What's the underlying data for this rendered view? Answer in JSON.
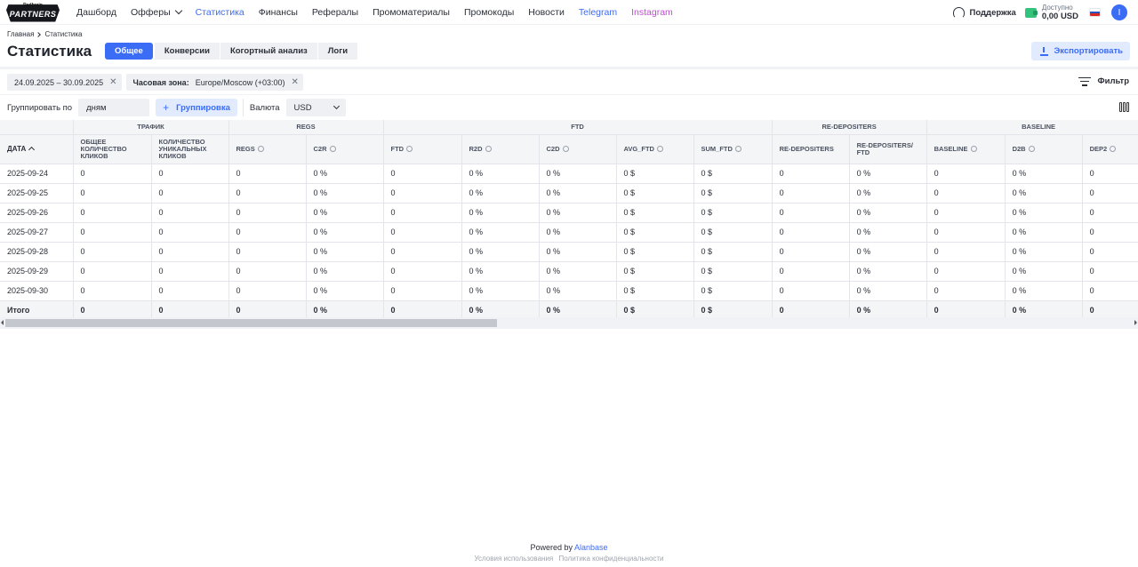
{
  "logo": {
    "top": "Redbrain",
    "main": "PARTNERS"
  },
  "nav": [
    {
      "label": "Дашборд"
    },
    {
      "label": "Офферы",
      "dropdown": true
    },
    {
      "label": "Статистика",
      "active": true
    },
    {
      "label": "Финансы"
    },
    {
      "label": "Рефералы"
    },
    {
      "label": "Промоматериалы"
    },
    {
      "label": "Промокоды"
    },
    {
      "label": "Новости"
    },
    {
      "label": "Telegram",
      "color": "#3b6cf6"
    },
    {
      "label": "Instagram",
      "color": "#c04bd6"
    }
  ],
  "topbar": {
    "support_label": "Поддержка",
    "balance_label": "Доступно",
    "balance_value": "0,00 USD",
    "avatar_letter": "I"
  },
  "breadcrumb": {
    "home": "Главная",
    "current": "Статистика"
  },
  "page_title": "Статистика",
  "tabs": [
    "Общее",
    "Конверсии",
    "Когортный анализ",
    "Логи"
  ],
  "active_tab": "Общее",
  "export_label": "Экспортировать",
  "chips": {
    "date_range": "24.09.2025 – 30.09.2025",
    "timezone_label": "Часовая зона:",
    "timezone_value": "Europe/Moscow (+03:00)"
  },
  "filter_label": "Фильтр",
  "grouping": {
    "label": "Группировать по",
    "value": "дням",
    "add_button": "Группировка",
    "currency_label": "Валюта",
    "currency_value": "USD"
  },
  "table": {
    "groups": [
      "ТРАФИК",
      "REGS",
      "FTD",
      "RE-DEPOSITERS",
      "BASELINE"
    ],
    "columns": [
      "ДАТА",
      "ОБЩЕЕ КОЛИЧЕСТВО КЛИКОВ",
      "КОЛИЧЕСТВО УНИКАЛЬНЫХ КЛИКОВ",
      "REGS",
      "C2R",
      "FTD",
      "R2D",
      "C2D",
      "AVG_FTD",
      "SUM_FTD",
      "RE-DEPOSITERS",
      "RE-DEPOSITERS/ FTD",
      "BASELINE",
      "D2B",
      "DEP2"
    ],
    "rows": [
      [
        "2025-09-24",
        "0",
        "0",
        "0",
        "0 %",
        "0",
        "0 %",
        "0 %",
        "0 $",
        "0 $",
        "0",
        "0 %",
        "0",
        "0 %",
        "0"
      ],
      [
        "2025-09-25",
        "0",
        "0",
        "0",
        "0 %",
        "0",
        "0 %",
        "0 %",
        "0 $",
        "0 $",
        "0",
        "0 %",
        "0",
        "0 %",
        "0"
      ],
      [
        "2025-09-26",
        "0",
        "0",
        "0",
        "0 %",
        "0",
        "0 %",
        "0 %",
        "0 $",
        "0 $",
        "0",
        "0 %",
        "0",
        "0 %",
        "0"
      ],
      [
        "2025-09-27",
        "0",
        "0",
        "0",
        "0 %",
        "0",
        "0 %",
        "0 %",
        "0 $",
        "0 $",
        "0",
        "0 %",
        "0",
        "0 %",
        "0"
      ],
      [
        "2025-09-28",
        "0",
        "0",
        "0",
        "0 %",
        "0",
        "0 %",
        "0 %",
        "0 $",
        "0 $",
        "0",
        "0 %",
        "0",
        "0 %",
        "0"
      ],
      [
        "2025-09-29",
        "0",
        "0",
        "0",
        "0 %",
        "0",
        "0 %",
        "0 %",
        "0 $",
        "0 $",
        "0",
        "0 %",
        "0",
        "0 %",
        "0"
      ],
      [
        "2025-09-30",
        "0",
        "0",
        "0",
        "0 %",
        "0",
        "0 %",
        "0 %",
        "0 $",
        "0 $",
        "0",
        "0 %",
        "0",
        "0 %",
        "0"
      ]
    ],
    "total": [
      "Итого",
      "0",
      "0",
      "0",
      "0 %",
      "0",
      "0 %",
      "0 %",
      "0 $",
      "0 $",
      "0",
      "0 %",
      "0",
      "0 %",
      "0"
    ]
  },
  "footer": {
    "powered_by": "Powered by",
    "brand": "Alanbase",
    "terms": "Условия использования",
    "privacy": "Политика конфиденциальности"
  },
  "colors": {
    "accent": "#3b6cf6",
    "instagram": "#c04bd6",
    "wallet": "#33c37a"
  }
}
